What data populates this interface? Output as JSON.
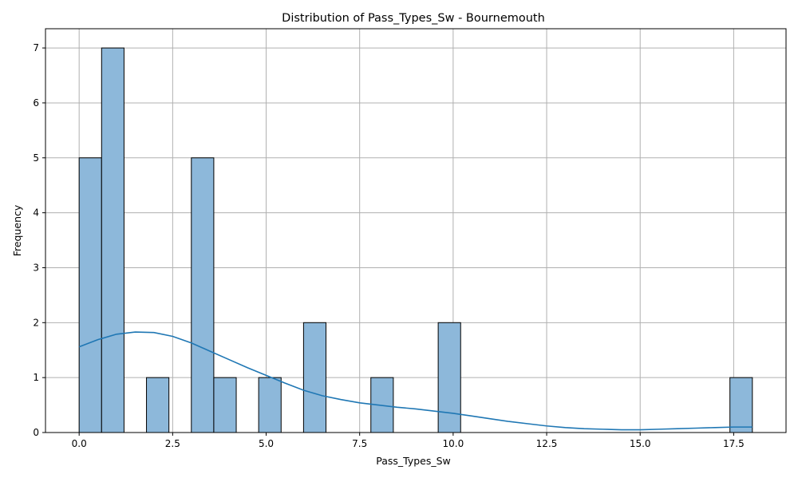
{
  "chart_data": {
    "type": "bar",
    "title": "Distribution of Pass_Types_Sw - Bournemouth",
    "xlabel": "Pass_Types_Sw",
    "ylabel": "Frequency",
    "xlim": [
      -0.9,
      18.9
    ],
    "ylim": [
      0,
      7.35
    ],
    "xticks": [
      0.0,
      2.5,
      5.0,
      7.5,
      10.0,
      12.5,
      15.0,
      17.5
    ],
    "xtick_labels": [
      "0.0",
      "2.5",
      "5.0",
      "7.5",
      "10.0",
      "12.5",
      "15.0",
      "17.5"
    ],
    "yticks": [
      0,
      1,
      2,
      3,
      4,
      5,
      6,
      7
    ],
    "ytick_labels": [
      "0",
      "1",
      "2",
      "3",
      "4",
      "5",
      "6",
      "7"
    ],
    "grid": true,
    "bins": [
      {
        "x0": 0.0,
        "x1": 0.6,
        "count": 5
      },
      {
        "x0": 0.6,
        "x1": 1.2,
        "count": 7
      },
      {
        "x0": 1.8,
        "x1": 2.4,
        "count": 1
      },
      {
        "x0": 3.0,
        "x1": 3.6,
        "count": 5
      },
      {
        "x0": 3.6,
        "x1": 4.2,
        "count": 1
      },
      {
        "x0": 4.8,
        "x1": 5.4,
        "count": 1
      },
      {
        "x0": 6.0,
        "x1": 6.6,
        "count": 2
      },
      {
        "x0": 7.8,
        "x1": 8.4,
        "count": 1
      },
      {
        "x0": 9.6,
        "x1": 10.2,
        "count": 2
      },
      {
        "x0": 17.4,
        "x1": 18.0,
        "count": 1
      }
    ],
    "kde": {
      "x": [
        0.0,
        0.5,
        1.0,
        1.5,
        2.0,
        2.5,
        3.0,
        3.5,
        4.0,
        4.5,
        5.0,
        5.5,
        6.0,
        6.5,
        7.0,
        7.5,
        8.0,
        8.5,
        9.0,
        9.5,
        10.0,
        10.5,
        11.0,
        11.5,
        12.0,
        12.5,
        13.0,
        13.5,
        14.0,
        14.5,
        15.0,
        15.5,
        16.0,
        16.5,
        17.0,
        17.5,
        18.0
      ],
      "y": [
        1.56,
        1.69,
        1.79,
        1.83,
        1.82,
        1.75,
        1.63,
        1.48,
        1.33,
        1.18,
        1.04,
        0.9,
        0.77,
        0.67,
        0.6,
        0.54,
        0.5,
        0.46,
        0.43,
        0.39,
        0.35,
        0.3,
        0.25,
        0.2,
        0.16,
        0.12,
        0.09,
        0.07,
        0.06,
        0.05,
        0.05,
        0.06,
        0.07,
        0.08,
        0.09,
        0.1,
        0.1
      ]
    },
    "colors": {
      "bar_fill": "#8db8da",
      "bar_edge": "#000000",
      "kde_line": "#1f77b4",
      "grid": "#b0b0b0"
    }
  }
}
